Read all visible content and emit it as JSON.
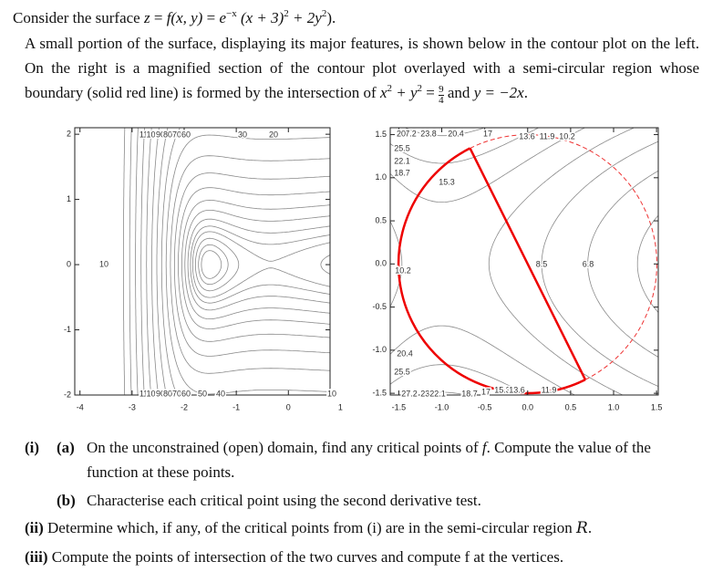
{
  "intro": {
    "lead": "Consider the surface",
    "z": "z",
    "eq1": "=",
    "f": "f(x, y)",
    "eq2": "=",
    "e": "e",
    "exp": "−x",
    "base": "(x + 3)",
    "sq1": "2",
    "plus": "+ 2y",
    "sq2": "2",
    "end": ")."
  },
  "paragraph": {
    "text1": "A small portion of the surface, displaying its major features, is shown below in the contour plot on the left. On the right is a magnified section of the contour plot overlayed with a semi-circular region whose boundary (solid red line) is formed by the intersection of",
    "m1": "x",
    "sup1": "2",
    "m2": "+ y",
    "sup2": "2",
    "m3": "=",
    "num": "9",
    "den": "4",
    "text2": "and",
    "m4": "y = −2x",
    "text3": "."
  },
  "left_plot": {
    "xlim": [
      -4.1,
      0.8
    ],
    "ylim": [
      -2,
      2.1
    ],
    "xticks": [
      -4,
      -3,
      -2,
      -1,
      0,
      1
    ],
    "yticks": [
      -2,
      -1,
      0,
      1,
      2
    ],
    "contour_labels": [
      "110",
      "100",
      "90",
      "80",
      "70",
      "60",
      "30",
      "20",
      "10",
      "110",
      "100",
      "90",
      "80",
      "70",
      "60",
      "50",
      "40",
      "10"
    ]
  },
  "right_plot": {
    "xlim": [
      -1.6,
      1.52
    ],
    "ylim": [
      -1.52,
      1.58
    ],
    "xticks": [
      -1.5,
      {
        "value": -1,
        "label": "-1.0"
      },
      -0.5,
      {
        "value": 0,
        "label": "0.0"
      },
      0.5,
      {
        "value": 1,
        "label": "1.0"
      },
      1.5
    ],
    "yticks": [
      -1.5,
      {
        "value": -1,
        "label": "-1.0"
      },
      -0.5,
      {
        "value": 0,
        "label": "0.0"
      },
      0.5,
      {
        "value": 1,
        "label": "1.0"
      },
      1.5
    ],
    "contour_labels": [
      "27.2",
      "20",
      "23.8",
      "20.4",
      "17",
      "13.6",
      "11.9",
      "10.2",
      "25.5",
      "22.1",
      "18.7",
      "15.3",
      "10.2",
      "20.4",
      "25.5",
      "27.2",
      "23.8",
      "22.1",
      "18.7",
      "17",
      "15.3",
      "13.6",
      "11.9",
      "8.5",
      "6.8"
    ]
  },
  "questions": {
    "i": {
      "label": "(i)",
      "a": {
        "label": "(a)",
        "text1": "On the unconstrained (open) domain, find any critical points of",
        "f": "f",
        "text2": ". Compute the value of the function at these points."
      },
      "b": {
        "label": "(b)",
        "text": "Characterise each critical point using the second derivative test."
      }
    },
    "ii": {
      "label": "(ii)",
      "text1": "Determine which, if any, of the critical points from (i) are in the semi-circular region",
      "R": "R",
      "end": "."
    },
    "iii": {
      "label": "(iii)",
      "text": "Compute the points of intersection of the two curves and compute f at the vertices."
    }
  }
}
